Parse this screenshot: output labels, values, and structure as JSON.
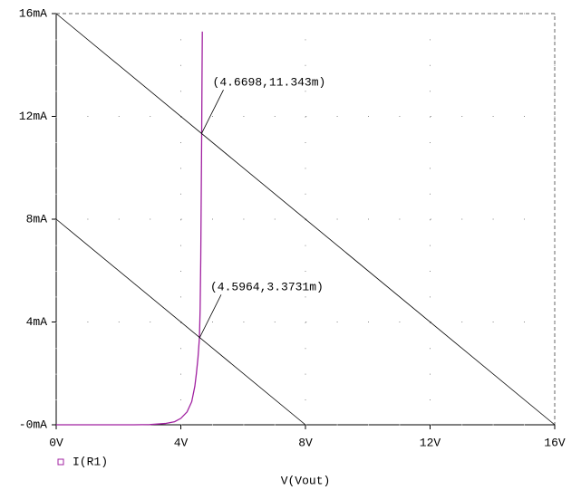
{
  "chart_data": {
    "type": "line",
    "x_label": "V(Vout)",
    "xlim": [
      0,
      16
    ],
    "ylim": [
      0,
      16
    ],
    "xticks": [
      {
        "value": 0,
        "label": "0V"
      },
      {
        "value": 4,
        "label": "4V"
      },
      {
        "value": 8,
        "label": "8V"
      },
      {
        "value": 12,
        "label": "12V"
      },
      {
        "value": 16,
        "label": "16V"
      }
    ],
    "yticks": [
      {
        "value": 0,
        "label": "-0mA"
      },
      {
        "value": 4,
        "label": "4mA"
      },
      {
        "value": 8,
        "label": "8mA"
      },
      {
        "value": 12,
        "label": "12mA"
      },
      {
        "value": 16,
        "label": "16mA"
      }
    ],
    "grid": true,
    "series": [
      {
        "name": "I(R1)",
        "color": "#a020a0",
        "x": [
          0,
          2.5,
          3,
          3.5,
          3.8,
          4.0,
          4.2,
          4.35,
          4.45,
          4.5,
          4.55,
          4.5964,
          4.62,
          4.64,
          4.6698,
          4.68,
          4.69
        ],
        "values": [
          0,
          0,
          0.01,
          0.05,
          0.12,
          0.25,
          0.5,
          0.9,
          1.5,
          2.0,
          2.6,
          3.3731,
          4.5,
          6.5,
          11.343,
          13.5,
          15.3
        ]
      },
      {
        "color": "#000000",
        "x": [
          0,
          16
        ],
        "values": [
          16,
          0
        ]
      },
      {
        "color": "#000000",
        "x": [
          0,
          8
        ],
        "values": [
          8,
          0
        ]
      }
    ],
    "annotations": [
      {
        "text": "(4.6698,11.343m)",
        "x": 4.6698,
        "y": 11.343
      },
      {
        "text": "(4.5964,3.3731m)",
        "x": 4.5964,
        "y": 3.3731
      }
    ]
  }
}
